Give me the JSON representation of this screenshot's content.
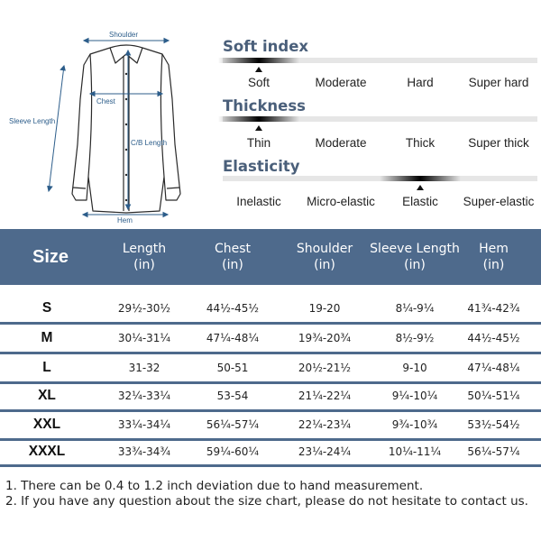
{
  "diagram": {
    "labels": {
      "shoulder": "Shoulder",
      "chest": "Chest",
      "sleeve_length": "Sleeve Length",
      "cb_length": "C/B Length",
      "hem": "Hem"
    },
    "accent_color": "#2c5d8a"
  },
  "properties": [
    {
      "title": "Soft index",
      "options": [
        "Soft",
        "Moderate",
        "Hard",
        "Super hard"
      ],
      "selected_index": 0
    },
    {
      "title": "Thickness",
      "options": [
        "Thin",
        "Moderate",
        "Thick",
        "Super thick"
      ],
      "selected_index": 0
    },
    {
      "title": "Elasticity",
      "options": [
        "Inelastic",
        "Micro-elastic",
        "Elastic",
        "Super-elastic"
      ],
      "selected_index": 2
    }
  ],
  "size_table": {
    "header_color": "#4e6a8c",
    "size_header": "Size",
    "columns": [
      {
        "line1": "Length",
        "line2": "(in)"
      },
      {
        "line1": "Chest",
        "line2": "(in)"
      },
      {
        "line1": "Shoulder",
        "line2": "(in)"
      },
      {
        "line1": "Sleeve Length",
        "line2": "(in)"
      },
      {
        "line1": "Hem",
        "line2": "(in)"
      }
    ],
    "rows": [
      {
        "size": "S",
        "cells": [
          "29½-30½",
          "44½-45½",
          "19-20",
          "8¼-9¼",
          "41¾-42¾"
        ]
      },
      {
        "size": "M",
        "cells": [
          "30¼-31¼",
          "47¼-48¼",
          "19¾-20¾",
          "8½-9½",
          "44½-45½"
        ]
      },
      {
        "size": "L",
        "cells": [
          "31-32",
          "50-51",
          "20½-21½",
          "9-10",
          "47¼-48¼"
        ]
      },
      {
        "size": "XL",
        "cells": [
          "32¼-33¼",
          "53-54",
          "21¼-22¼",
          "9¼-10¼",
          "50¼-51¼"
        ]
      },
      {
        "size": "XXL",
        "cells": [
          "33¼-34¼",
          "56¼-57¼",
          "22¼-23¼",
          "9¾-10¾",
          "53½-54½"
        ]
      },
      {
        "size": "XXXL",
        "cells": [
          "33¾-34¾",
          "59¼-60¼",
          "23¼-24¼",
          "10¼-11¼",
          "56¼-57¼"
        ]
      }
    ]
  },
  "notes": [
    "1. There can be 0.4 to 1.2 inch deviation due to hand measurement.",
    "2. If you have any question about the size chart, please do not hesitate to contact us."
  ]
}
